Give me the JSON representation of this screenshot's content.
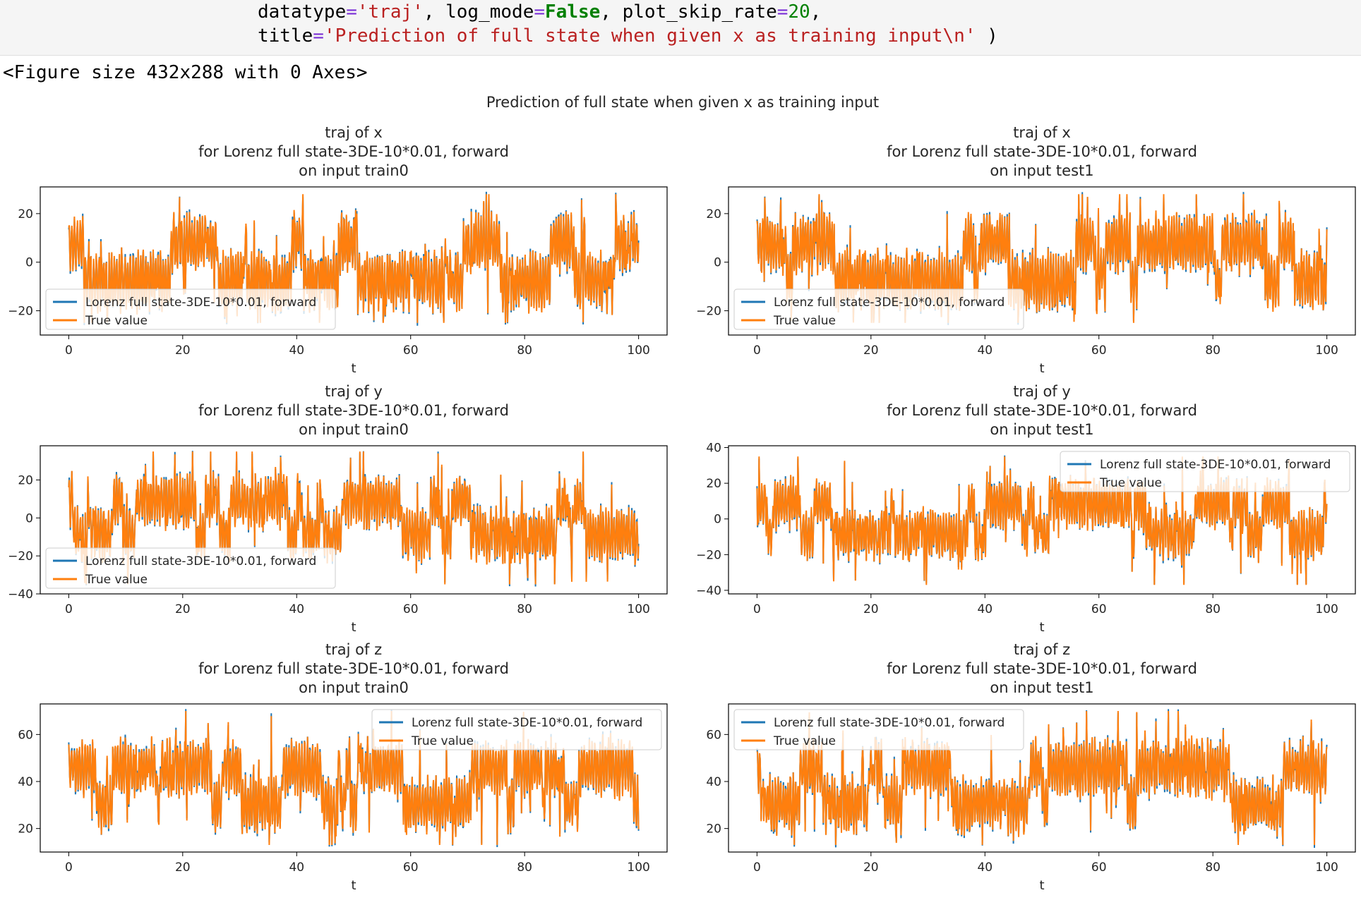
{
  "code": {
    "line1": {
      "pre": "datatype",
      "eq1": "=",
      "s1": "'traj'",
      "c1": ", log_mode",
      "eq2": "=",
      "b1": "False",
      "c2": ", plot_skip_rate",
      "eq3": "=",
      "n1": "20",
      "c3": ","
    },
    "line2": {
      "pre": "title",
      "eq1": "=",
      "s1": "'Prediction of full state when given x as training input\\n'",
      "c1": " )"
    }
  },
  "output_text": "<Figure size 432x288 with 0 Axes>",
  "colors": {
    "prediction": "#1f77b4",
    "true_value": "#ff7f0e"
  },
  "figure_title": "Prediction of full state when given x as training input",
  "chart_data": [
    {
      "type": "line",
      "var": "x",
      "input": "train0",
      "title": [
        "traj of x",
        "for Lorenz full state-3DE-10*0.01, forward",
        "on input train0"
      ],
      "xlabel": "t",
      "xlim": [
        -5,
        105
      ],
      "ylim": [
        -30,
        31
      ],
      "xticks": [
        0,
        20,
        40,
        60,
        80,
        100
      ],
      "yticks": [
        -20,
        0,
        20
      ],
      "legend": "lower-left",
      "series": [
        {
          "name": "Lorenz full state-3DE-10*0.01, forward"
        },
        {
          "name": "True value"
        }
      ],
      "range": [
        -25,
        28
      ],
      "base": 0,
      "amp": 14,
      "seed": 11
    },
    {
      "type": "line",
      "var": "x",
      "input": "test1",
      "title": [
        "traj of x",
        "for Lorenz full state-3DE-10*0.01, forward",
        "on input test1"
      ],
      "xlabel": "t",
      "xlim": [
        -5,
        105
      ],
      "ylim": [
        -30,
        31
      ],
      "xticks": [
        0,
        20,
        40,
        60,
        80,
        100
      ],
      "yticks": [
        -20,
        0,
        20
      ],
      "legend": "lower-left",
      "series": [
        {
          "name": "Lorenz full state-3DE-10*0.01, forward"
        },
        {
          "name": "True value"
        }
      ],
      "range": [
        -25,
        28
      ],
      "base": 0,
      "amp": 14,
      "seed": 23
    },
    {
      "type": "line",
      "var": "y",
      "input": "train0",
      "title": [
        "traj of y",
        "for Lorenz full state-3DE-10*0.01, forward",
        "on input train0"
      ],
      "xlabel": "t",
      "xlim": [
        -5,
        105
      ],
      "ylim": [
        -40,
        38
      ],
      "xticks": [
        0,
        20,
        40,
        60,
        80,
        100
      ],
      "yticks": [
        -40,
        -20,
        0,
        20
      ],
      "legend": "lower-left",
      "series": [
        {
          "name": "Lorenz full state-3DE-10*0.01, forward"
        },
        {
          "name": "True value"
        }
      ],
      "range": [
        -35,
        35
      ],
      "base": 0,
      "amp": 16,
      "seed": 37
    },
    {
      "type": "line",
      "var": "y",
      "input": "test1",
      "title": [
        "traj of y",
        "for Lorenz full state-3DE-10*0.01, forward",
        "on input test1"
      ],
      "xlabel": "t",
      "xlim": [
        -5,
        105
      ],
      "ylim": [
        -42,
        41
      ],
      "xticks": [
        0,
        20,
        40,
        60,
        80,
        100
      ],
      "yticks": [
        -40,
        -20,
        0,
        20,
        40
      ],
      "legend": "upper-right",
      "series": [
        {
          "name": "Lorenz full state-3DE-10*0.01, forward"
        },
        {
          "name": "True value"
        }
      ],
      "range": [
        -37,
        35
      ],
      "base": 0,
      "amp": 16,
      "seed": 41
    },
    {
      "type": "line",
      "var": "z",
      "input": "train0",
      "title": [
        "traj of z",
        "for Lorenz full state-3DE-10*0.01, forward",
        "on input train0"
      ],
      "xlabel": "t",
      "xlim": [
        -5,
        105
      ],
      "ylim": [
        10,
        73
      ],
      "xticks": [
        0,
        20,
        40,
        60,
        80,
        100
      ],
      "yticks": [
        20,
        40,
        60
      ],
      "legend": "upper-right",
      "series": [
        {
          "name": "Lorenz full state-3DE-10*0.01, forward"
        },
        {
          "name": "True value"
        }
      ],
      "range": [
        13,
        70
      ],
      "base": 38,
      "amp": 14,
      "seed": 53
    },
    {
      "type": "line",
      "var": "z",
      "input": "test1",
      "title": [
        "traj of z",
        "for Lorenz full state-3DE-10*0.01, forward",
        "on input test1"
      ],
      "xlabel": "t",
      "xlim": [
        -5,
        105
      ],
      "ylim": [
        10,
        73
      ],
      "xticks": [
        0,
        20,
        40,
        60,
        80,
        100
      ],
      "yticks": [
        20,
        40,
        60
      ],
      "legend": "upper-left",
      "series": [
        {
          "name": "Lorenz full state-3DE-10*0.01, forward"
        },
        {
          "name": "True value"
        }
      ],
      "range": [
        13,
        70
      ],
      "base": 38,
      "amp": 14,
      "seed": 67
    }
  ]
}
